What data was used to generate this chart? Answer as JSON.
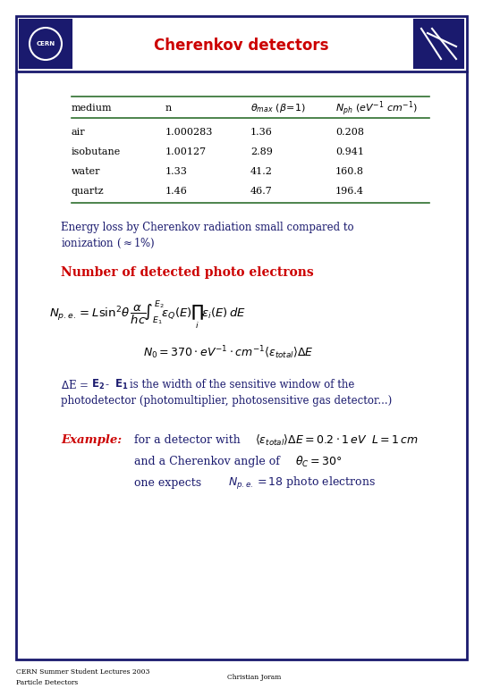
{
  "title": "Cherenkov detectors",
  "title_color": "#cc0000",
  "bg_color": "#ffffff",
  "border_color": "#1a1a6e",
  "table_data": [
    [
      "air",
      "1.000283",
      "1.36",
      "0.208"
    ],
    [
      "isobutane",
      "1.00127",
      "2.89",
      "0.941"
    ],
    [
      "water",
      "1.33",
      "41.2",
      "160.8"
    ],
    [
      "quartz",
      "1.46",
      "46.7",
      "196.4"
    ]
  ],
  "text_color_dark": "#1a1a6e",
  "text_color_red": "#cc0000",
  "table_line_color": "#2d6e2d",
  "footer_left_1": "CERN Summer Student Lectures 2003",
  "footer_left_2": "Particle Detectors",
  "footer_center": "Christian Joram"
}
